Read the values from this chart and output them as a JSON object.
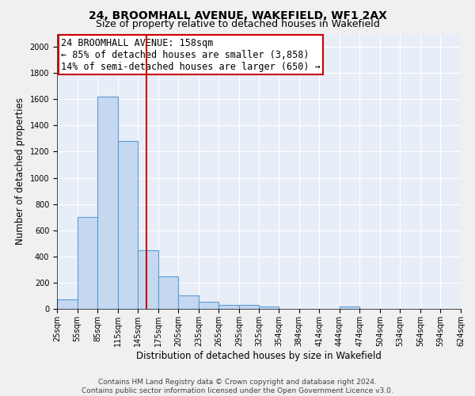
{
  "title1": "24, BROOMHALL AVENUE, WAKEFIELD, WF1 2AX",
  "title2": "Size of property relative to detached houses in Wakefield",
  "xlabel": "Distribution of detached houses by size in Wakefield",
  "ylabel": "Number of detached properties",
  "bin_edges": [
    25,
    55,
    85,
    115,
    145,
    175,
    205,
    235,
    265,
    295,
    325,
    354,
    384,
    414,
    444,
    474,
    504,
    534,
    564,
    594,
    624
  ],
  "bin_labels": [
    "25sqm",
    "55sqm",
    "85sqm",
    "115sqm",
    "145sqm",
    "175sqm",
    "205sqm",
    "235sqm",
    "265sqm",
    "295sqm",
    "325sqm",
    "354sqm",
    "384sqm",
    "414sqm",
    "444sqm",
    "474sqm",
    "504sqm",
    "534sqm",
    "564sqm",
    "594sqm",
    "624sqm"
  ],
  "bar_heights": [
    75,
    700,
    1620,
    1280,
    450,
    250,
    100,
    55,
    30,
    30,
    20,
    0,
    0,
    0,
    20,
    0,
    0,
    0,
    0,
    0
  ],
  "bar_color": "#c5d8f0",
  "bar_edge_color": "#5b9bd5",
  "property_size": 158,
  "vline_color": "#cc0000",
  "annotation_text": "24 BROOMHALL AVENUE: 158sqm\n← 85% of detached houses are smaller (3,858)\n14% of semi-detached houses are larger (650) →",
  "annotation_box_color": "#ffffff",
  "annotation_edge_color": "#cc0000",
  "ylim": [
    0,
    2100
  ],
  "yticks": [
    0,
    200,
    400,
    600,
    800,
    1000,
    1200,
    1400,
    1600,
    1800,
    2000
  ],
  "background_color": "#e8eef7",
  "footer_text": "Contains HM Land Registry data © Crown copyright and database right 2024.\nContains public sector information licensed under the Open Government Licence v3.0.",
  "title1_fontsize": 10,
  "title2_fontsize": 9,
  "xlabel_fontsize": 8.5,
  "ylabel_fontsize": 8.5,
  "tick_fontsize": 7,
  "annotation_fontsize": 8.5,
  "footer_fontsize": 6.5
}
